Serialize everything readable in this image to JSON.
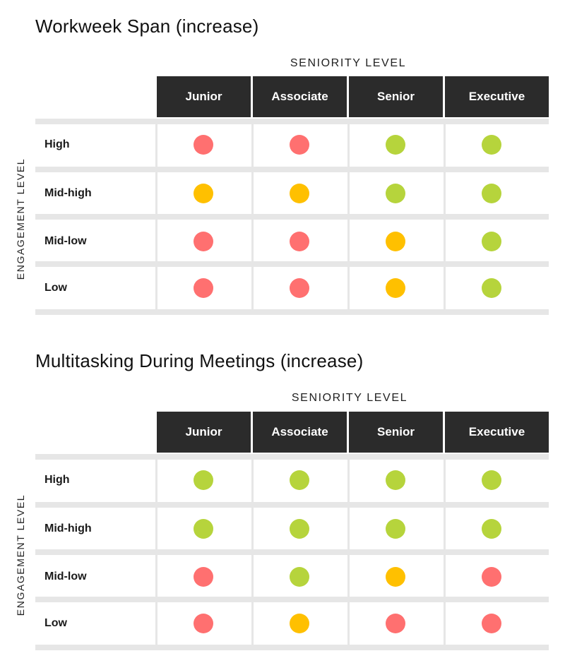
{
  "colors": {
    "red": "#ff7070",
    "amber": "#ffc000",
    "green": "#b6d43c",
    "header_bg": "#2b2b2b"
  },
  "chart_data": [
    {
      "type": "heatmap",
      "title": "Workweek Span (increase)",
      "xlabel": "SENIORITY LEVEL",
      "ylabel": "ENGAGEMENT LEVEL",
      "columns": [
        "Junior",
        "Associate",
        "Senior",
        "Executive"
      ],
      "rows": [
        "High",
        "Mid-high",
        "Mid-low",
        "Low"
      ],
      "values": [
        [
          "red",
          "red",
          "green",
          "green"
        ],
        [
          "amber",
          "amber",
          "green",
          "green"
        ],
        [
          "red",
          "red",
          "amber",
          "green"
        ],
        [
          "red",
          "red",
          "amber",
          "green"
        ]
      ]
    },
    {
      "type": "heatmap",
      "title": "Multitasking During Meetings (increase)",
      "xlabel": "SENIORITY LEVEL",
      "ylabel": "ENGAGEMENT LEVEL",
      "columns": [
        "Junior",
        "Associate",
        "Senior",
        "Executive"
      ],
      "rows": [
        "High",
        "Mid-high",
        "Mid-low",
        "Low"
      ],
      "values": [
        [
          "green",
          "green",
          "green",
          "green"
        ],
        [
          "green",
          "green",
          "green",
          "green"
        ],
        [
          "red",
          "green",
          "amber",
          "red"
        ],
        [
          "red",
          "amber",
          "red",
          "red"
        ]
      ]
    }
  ]
}
